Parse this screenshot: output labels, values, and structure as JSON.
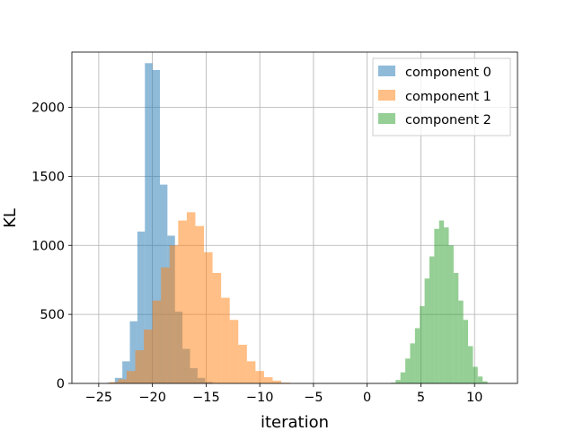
{
  "chart_data": {
    "type": "bar",
    "xlabel": "iteration",
    "ylabel": "KL",
    "xlim": [
      -27.5,
      14.0
    ],
    "ylim": [
      0,
      2400
    ],
    "xticks": [
      -25,
      -20,
      -15,
      -10,
      -5,
      0,
      5,
      10
    ],
    "xtick_labels": [
      "−25",
      "−20",
      "−15",
      "−10",
      "−5",
      "0",
      "5",
      "10"
    ],
    "yticks": [
      0,
      500,
      1000,
      1500,
      2000
    ],
    "ytick_labels": [
      "0",
      "500",
      "1000",
      "1500",
      "2000"
    ],
    "grid": true,
    "legend_position": "top-right",
    "alpha": 0.5,
    "series": [
      {
        "name": "component 0",
        "color": "#1f77b4",
        "bin_edges": [
          -24.2,
          -23.5,
          -22.8,
          -22.1,
          -21.4,
          -20.7,
          -20.0,
          -19.3,
          -18.6,
          -17.9,
          -17.2,
          -16.5,
          -15.8,
          -15.1,
          -14.4
        ],
        "counts": [
          5,
          40,
          160,
          450,
          1100,
          2320,
          2270,
          1440,
          1070,
          520,
          250,
          110,
          40,
          10
        ]
      },
      {
        "name": "component 1",
        "color": "#ff7f0e",
        "bin_edges": [
          -24.0,
          -23.2,
          -22.4,
          -21.6,
          -20.8,
          -20.0,
          -19.2,
          -18.4,
          -17.6,
          -16.8,
          -16.0,
          -15.2,
          -14.4,
          -13.6,
          -12.8,
          -12.0,
          -11.2,
          -10.4,
          -9.6,
          -8.8,
          -8.0,
          -7.2
        ],
        "counts": [
          10,
          30,
          90,
          240,
          390,
          600,
          840,
          1000,
          1180,
          1240,
          1140,
          950,
          800,
          620,
          460,
          280,
          160,
          90,
          45,
          20,
          5
        ]
      },
      {
        "name": "component 2",
        "color": "#2ca02c",
        "bin_edges": [
          2.2,
          2.65,
          3.1,
          3.55,
          4.0,
          4.45,
          4.9,
          5.35,
          5.8,
          6.25,
          6.7,
          7.15,
          7.6,
          8.05,
          8.5,
          8.95,
          9.4,
          9.85,
          10.3,
          10.75,
          11.2
        ],
        "counts": [
          5,
          25,
          80,
          180,
          290,
          400,
          560,
          760,
          920,
          1120,
          1180,
          1130,
          1000,
          800,
          600,
          460,
          270,
          120,
          50,
          15
        ]
      }
    ]
  }
}
